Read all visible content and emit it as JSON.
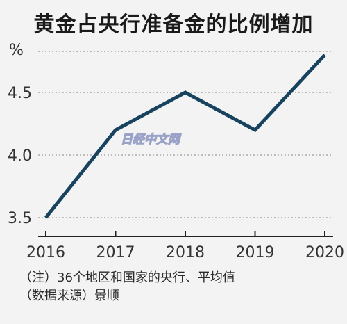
{
  "title": "黄金占央行准备金的比例增加",
  "watermark": "日经中文网",
  "notes": {
    "line1": "（注）36个地区和国家的央行、平均值",
    "line2": "（数据来源）景顺"
  },
  "chart_data": {
    "type": "line",
    "x": [
      "2016",
      "2017",
      "2018",
      "2019",
      "2020"
    ],
    "series": [
      {
        "values": [
          3.5,
          4.2,
          4.5,
          4.2,
          4.8
        ]
      }
    ],
    "ylabel": "%",
    "yticks": [
      3.5,
      4.0,
      4.5
    ],
    "ylim": [
      3.4,
      4.95
    ],
    "grid": "horizontal dotted",
    "colors": {
      "line": "#17435f",
      "grid": "#9a9a9a",
      "axis": "#222222"
    }
  }
}
